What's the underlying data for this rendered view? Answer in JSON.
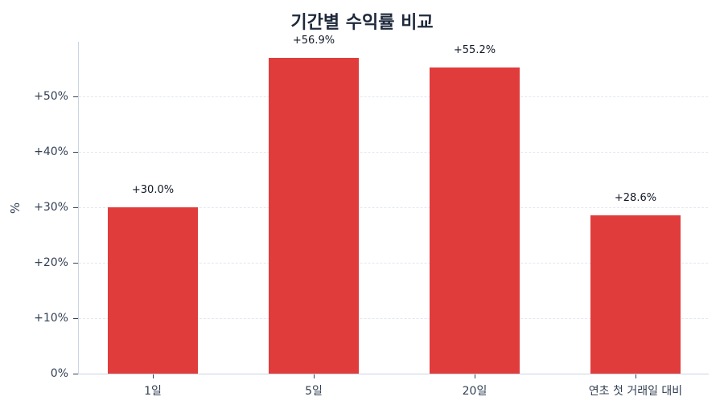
{
  "chart_data": {
    "type": "bar",
    "title": "기간별 수익률 비교",
    "xlabel": "",
    "ylabel": "%",
    "categories": [
      "1일",
      "5일",
      "20일",
      "연초 첫 거래일 대비"
    ],
    "values": [
      30.0,
      56.9,
      55.2,
      28.6
    ],
    "value_labels": [
      "+30.0%",
      "+56.9%",
      "+55.2%",
      "+28.6%"
    ],
    "ylim": [
      0,
      60
    ],
    "yticks": [
      0,
      10,
      20,
      30,
      40,
      50
    ],
    "ytick_labels": [
      "0%",
      "+10%",
      "+20%",
      "+30%",
      "+40%",
      "+50%"
    ],
    "grid": true,
    "legend": null,
    "bar_color": "#e03c3c"
  },
  "title": "기간별 수익률 비교",
  "ylabel": "%"
}
